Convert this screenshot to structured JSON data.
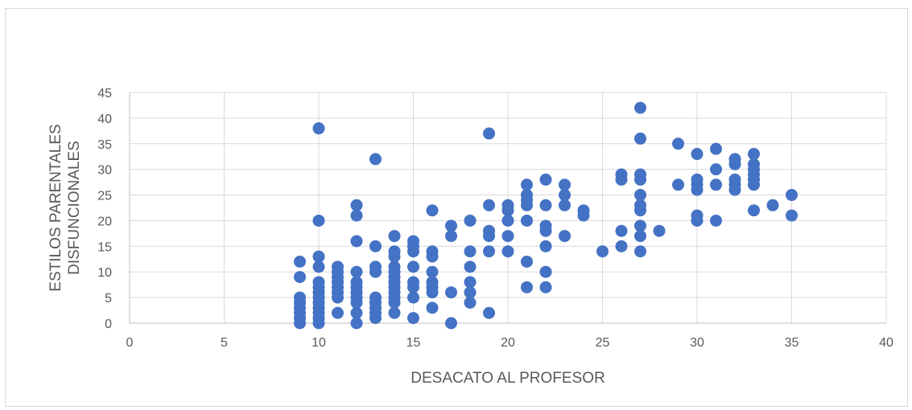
{
  "chart_data": {
    "type": "scatter",
    "title": "",
    "xlabel": "DESACATO AL PROFESOR",
    "ylabel_lines": [
      "ESTILOS PARENTALES",
      "DISFUNCIONALES"
    ],
    "xlim": [
      0,
      40
    ],
    "ylim": [
      0,
      45
    ],
    "x_ticks": [
      0,
      5,
      10,
      15,
      20,
      25,
      30,
      35,
      40
    ],
    "y_ticks": [
      0,
      5,
      10,
      15,
      20,
      25,
      30,
      35,
      40,
      45
    ],
    "grid": true,
    "legend": "none",
    "marker_color": "#4472c4",
    "series": [
      {
        "points": [
          [
            9,
            0
          ],
          [
            9,
            1
          ],
          [
            9,
            2
          ],
          [
            9,
            3
          ],
          [
            9,
            4
          ],
          [
            9,
            5
          ],
          [
            9,
            9
          ],
          [
            9,
            12
          ],
          [
            10,
            0
          ],
          [
            10,
            1
          ],
          [
            10,
            2
          ],
          [
            10,
            3
          ],
          [
            10,
            4
          ],
          [
            10,
            5
          ],
          [
            10,
            6
          ],
          [
            10,
            7
          ],
          [
            10,
            8
          ],
          [
            10,
            11
          ],
          [
            10,
            13
          ],
          [
            10,
            20
          ],
          [
            10,
            38
          ],
          [
            11,
            2
          ],
          [
            11,
            5
          ],
          [
            11,
            6
          ],
          [
            11,
            7
          ],
          [
            11,
            8
          ],
          [
            11,
            9
          ],
          [
            11,
            10
          ],
          [
            11,
            11
          ],
          [
            12,
            0
          ],
          [
            12,
            2
          ],
          [
            12,
            4
          ],
          [
            12,
            5
          ],
          [
            12,
            6
          ],
          [
            12,
            7
          ],
          [
            12,
            8
          ],
          [
            12,
            10
          ],
          [
            12,
            16
          ],
          [
            12,
            21
          ],
          [
            12,
            23
          ],
          [
            13,
            1
          ],
          [
            13,
            2
          ],
          [
            13,
            3
          ],
          [
            13,
            4
          ],
          [
            13,
            5
          ],
          [
            13,
            10
          ],
          [
            13,
            11
          ],
          [
            13,
            15
          ],
          [
            13,
            32
          ],
          [
            14,
            2
          ],
          [
            14,
            4
          ],
          [
            14,
            5
          ],
          [
            14,
            6
          ],
          [
            14,
            7
          ],
          [
            14,
            8
          ],
          [
            14,
            9
          ],
          [
            14,
            10
          ],
          [
            14,
            11
          ],
          [
            14,
            13
          ],
          [
            14,
            14
          ],
          [
            14,
            17
          ],
          [
            15,
            1
          ],
          [
            15,
            5
          ],
          [
            15,
            7
          ],
          [
            15,
            8
          ],
          [
            15,
            11
          ],
          [
            15,
            14
          ],
          [
            15,
            15
          ],
          [
            15,
            16
          ],
          [
            16,
            3
          ],
          [
            16,
            6
          ],
          [
            16,
            7
          ],
          [
            16,
            8
          ],
          [
            16,
            10
          ],
          [
            16,
            13
          ],
          [
            16,
            14
          ],
          [
            16,
            22
          ],
          [
            17,
            0
          ],
          [
            17,
            6
          ],
          [
            17,
            17
          ],
          [
            17,
            19
          ],
          [
            18,
            4
          ],
          [
            18,
            6
          ],
          [
            18,
            8
          ],
          [
            18,
            11
          ],
          [
            18,
            14
          ],
          [
            18,
            20
          ],
          [
            19,
            2
          ],
          [
            19,
            14
          ],
          [
            19,
            17
          ],
          [
            19,
            18
          ],
          [
            19,
            23
          ],
          [
            19,
            37
          ],
          [
            20,
            14
          ],
          [
            20,
            17
          ],
          [
            20,
            20
          ],
          [
            20,
            22
          ],
          [
            20,
            23
          ],
          [
            21,
            7
          ],
          [
            21,
            12
          ],
          [
            21,
            20
          ],
          [
            21,
            23
          ],
          [
            21,
            24
          ],
          [
            21,
            25
          ],
          [
            21,
            27
          ],
          [
            22,
            7
          ],
          [
            22,
            10
          ],
          [
            22,
            15
          ],
          [
            22,
            18
          ],
          [
            22,
            19
          ],
          [
            22,
            23
          ],
          [
            22,
            28
          ],
          [
            23,
            17
          ],
          [
            23,
            23
          ],
          [
            23,
            25
          ],
          [
            23,
            27
          ],
          [
            24,
            21
          ],
          [
            24,
            22
          ],
          [
            25,
            14
          ],
          [
            26,
            15
          ],
          [
            26,
            18
          ],
          [
            26,
            28
          ],
          [
            26,
            29
          ],
          [
            27,
            14
          ],
          [
            27,
            17
          ],
          [
            27,
            19
          ],
          [
            27,
            22
          ],
          [
            27,
            23
          ],
          [
            27,
            25
          ],
          [
            27,
            28
          ],
          [
            27,
            29
          ],
          [
            27,
            36
          ],
          [
            27,
            42
          ],
          [
            28,
            18
          ],
          [
            29,
            27
          ],
          [
            29,
            35
          ],
          [
            30,
            20
          ],
          [
            30,
            21
          ],
          [
            30,
            26
          ],
          [
            30,
            27
          ],
          [
            30,
            28
          ],
          [
            30,
            33
          ],
          [
            31,
            20
          ],
          [
            31,
            27
          ],
          [
            31,
            30
          ],
          [
            31,
            34
          ],
          [
            32,
            26
          ],
          [
            32,
            27
          ],
          [
            32,
            28
          ],
          [
            32,
            31
          ],
          [
            32,
            32
          ],
          [
            33,
            22
          ],
          [
            33,
            27
          ],
          [
            33,
            28
          ],
          [
            33,
            29
          ],
          [
            33,
            30
          ],
          [
            33,
            31
          ],
          [
            33,
            33
          ],
          [
            34,
            23
          ],
          [
            35,
            21
          ],
          [
            35,
            25
          ]
        ]
      }
    ]
  }
}
